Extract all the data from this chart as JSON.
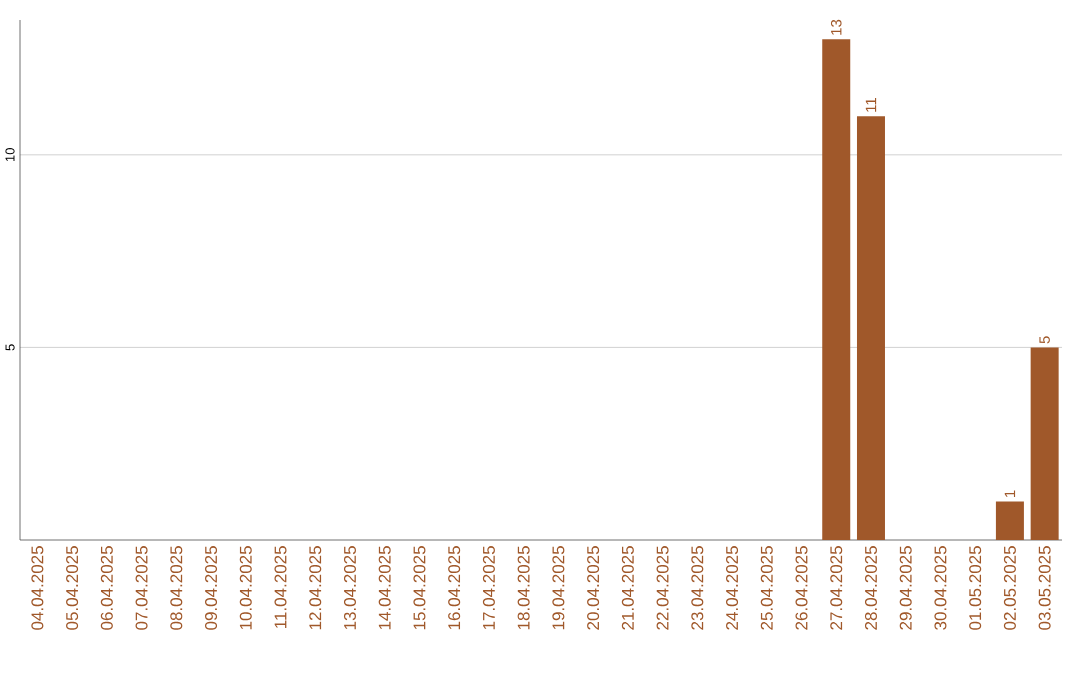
{
  "chart_data": {
    "type": "bar",
    "categories": [
      "04.04.2025",
      "05.04.2025",
      "06.04.2025",
      "07.04.2025",
      "08.04.2025",
      "09.04.2025",
      "10.04.2025",
      "11.04.2025",
      "12.04.2025",
      "13.04.2025",
      "14.04.2025",
      "15.04.2025",
      "16.04.2025",
      "17.04.2025",
      "18.04.2025",
      "19.04.2025",
      "20.04.2025",
      "21.04.2025",
      "22.04.2025",
      "23.04.2025",
      "24.04.2025",
      "25.04.2025",
      "26.04.2025",
      "27.04.2025",
      "28.04.2025",
      "29.04.2025",
      "30.04.2025",
      "01.05.2025",
      "02.05.2025",
      "03.05.2025"
    ],
    "values": [
      0,
      0,
      0,
      0,
      0,
      0,
      0,
      0,
      0,
      0,
      0,
      0,
      0,
      0,
      0,
      0,
      0,
      0,
      0,
      0,
      0,
      0,
      0,
      13,
      11,
      0,
      0,
      0,
      1,
      5
    ],
    "value_labels": [
      null,
      null,
      null,
      null,
      null,
      null,
      null,
      null,
      null,
      null,
      null,
      null,
      null,
      null,
      null,
      null,
      null,
      null,
      null,
      null,
      null,
      null,
      null,
      "13",
      "11",
      null,
      null,
      null,
      "1",
      "5"
    ],
    "color": "#a0582a",
    "ylim": [
      0,
      13.5
    ],
    "yticks": [
      5,
      10
    ],
    "grid": "y"
  }
}
